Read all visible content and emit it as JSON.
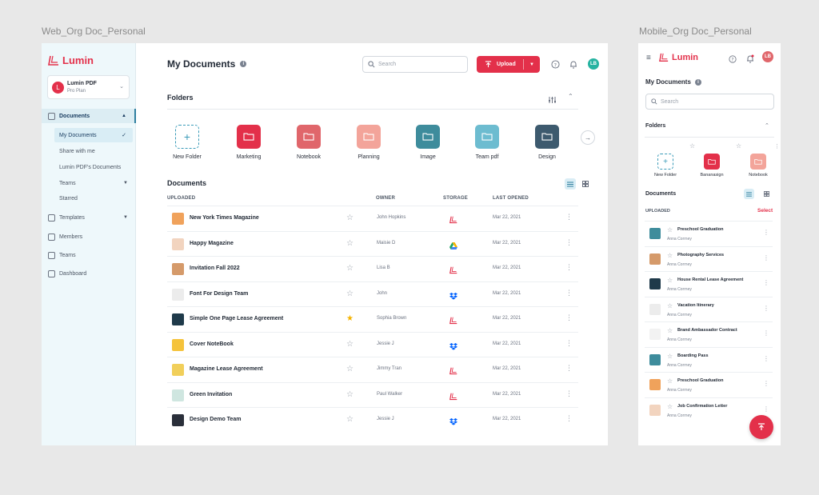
{
  "frames": {
    "web_label": "Web_Org Doc_Personal",
    "mobile_label": "Mobile_Org Doc_Personal"
  },
  "brand": {
    "name": "Lumin",
    "accent": "#e3304a"
  },
  "workspace": {
    "name": "Lumin PDF",
    "plan": "Pro Plan",
    "avatar": "L"
  },
  "sidebar": {
    "items": [
      {
        "label": "Documents",
        "icon": "document-icon",
        "active": true
      },
      {
        "label": "My Documents",
        "sub": true,
        "active": true
      },
      {
        "label": "Share with me",
        "sub": true
      },
      {
        "label": "Lumin PDF's Documents",
        "sub": true
      },
      {
        "label": "Teams",
        "sub": true
      },
      {
        "label": "Starred",
        "sub": true
      },
      {
        "label": "Templates",
        "icon": "template-icon"
      },
      {
        "label": "Members",
        "icon": "members-icon"
      },
      {
        "label": "Teams",
        "icon": "teams-icon"
      },
      {
        "label": "Dashboard",
        "icon": "dashboard-icon"
      }
    ]
  },
  "header": {
    "title": "My Documents",
    "search_placeholder": "Search",
    "upload_label": "Upload",
    "avatar": "LB"
  },
  "folders": {
    "title": "Folders",
    "items": [
      {
        "label": "New Folder",
        "color": ""
      },
      {
        "label": "Marketing",
        "color": "#e3304a"
      },
      {
        "label": "Notebook",
        "color": "#e0666b"
      },
      {
        "label": "Planning",
        "color": "#f3a49a"
      },
      {
        "label": "Image",
        "color": "#3e8c9c"
      },
      {
        "label": "Team pdf",
        "color": "#6dbcd0"
      },
      {
        "label": "Design",
        "color": "#3d5a6e"
      }
    ]
  },
  "documents": {
    "title": "Documents",
    "columns": {
      "uploaded": "UPLOADED",
      "owner": "OWNER",
      "storage": "STORAGE",
      "last_opened": "LAST OPENED"
    },
    "rows": [
      {
        "name": "New York Times Magazine",
        "owner": "John Hopkins",
        "storage": "lumin",
        "date": "Mar 22, 2021",
        "starred": false,
        "thumb": "#f0a25b"
      },
      {
        "name": "Happy Magazine",
        "owner": "Maisie D",
        "storage": "drive",
        "date": "Mar 22, 2021",
        "starred": false,
        "thumb": "#f2d4bf"
      },
      {
        "name": "Invitation Fall 2022",
        "owner": "Lisa B",
        "storage": "lumin",
        "date": "Mar 22, 2021",
        "starred": false,
        "thumb": "#d59a6a"
      },
      {
        "name": "Font For Design Team",
        "owner": "John",
        "storage": "dropbox",
        "date": "Mar 22, 2021",
        "starred": false,
        "thumb": "#ececec"
      },
      {
        "name": "Simple One Page Lease Agreement",
        "owner": "Sophia Brown",
        "storage": "lumin",
        "date": "Mar 22, 2021",
        "starred": true,
        "thumb": "#1f3a4a"
      },
      {
        "name": "Cover NoteBook",
        "owner": "Jessie J",
        "storage": "dropbox",
        "date": "Mar 22, 2021",
        "starred": false,
        "thumb": "#f5c33b"
      },
      {
        "name": "Magazine Lease Agreement",
        "owner": "Jimmy Tran",
        "storage": "lumin",
        "date": "Mar 22, 2021",
        "starred": false,
        "thumb": "#f1cf5a"
      },
      {
        "name": "Green Invitation",
        "owner": "Paul Walker",
        "storage": "lumin",
        "date": "Mar 22, 2021",
        "starred": false,
        "thumb": "#cfe6e0"
      },
      {
        "name": "Design Demo Team",
        "owner": "Jessie J",
        "storage": "dropbox",
        "date": "Mar 22, 2021",
        "starred": false,
        "thumb": "#2a2f3a"
      }
    ]
  },
  "mobile": {
    "title": "My Documents",
    "search_placeholder": "Search",
    "folders_title": "Folders",
    "folders": [
      {
        "label": "New Folder",
        "color": ""
      },
      {
        "label": "Bananasign",
        "color": "#e3304a"
      },
      {
        "label": "Notebook",
        "color": "#f3a49a"
      }
    ],
    "documents_title": "Documents",
    "uploaded": "UPLOADED",
    "select": "Select",
    "rows": [
      {
        "name": "Preschool Graduation",
        "owner": "Anna Corrney",
        "thumb": "#3e8c9c"
      },
      {
        "name": "Photography Services",
        "owner": "Anna Corrney",
        "thumb": "#d59a6a"
      },
      {
        "name": "House Rental Lease Agreement",
        "owner": "Anna Corrney",
        "thumb": "#1f3a4a"
      },
      {
        "name": "Vacation Itinerary",
        "owner": "Anna Corrney",
        "thumb": "#ececec"
      },
      {
        "name": "Brand Ambassador Contract",
        "owner": "Anna Corrney",
        "thumb": "#f2f2f2"
      },
      {
        "name": "Boarding Pass",
        "owner": "Anna Corrney",
        "thumb": "#3e8c9c"
      },
      {
        "name": "Preschool Graduation",
        "owner": "Anna Corrney",
        "thumb": "#f0a25b"
      },
      {
        "name": "Job Confirmation Letter",
        "owner": "Anna Corrney",
        "thumb": "#f2d4bf"
      }
    ]
  }
}
